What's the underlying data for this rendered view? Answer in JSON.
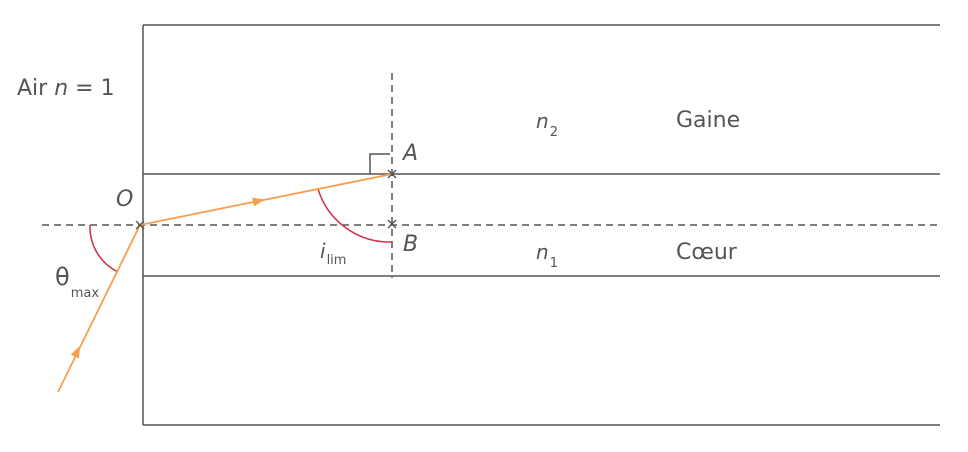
{
  "labels": {
    "air": "Air",
    "air_n": "n",
    "air_eq": "= 1",
    "n2_main": "n",
    "n2_sub": "2",
    "gaine": "Gaine",
    "n1_main": "n",
    "n1_sub": "1",
    "coeur": "Cœur",
    "point_O": "O",
    "point_A": "A",
    "point_B": "B",
    "i_main": "i",
    "i_sub": "lim",
    "theta_main": "θ",
    "theta_sub": "max"
  },
  "colors": {
    "line": "#555555",
    "ray": "#f6a04d",
    "angle_arc": "#d0304a"
  }
}
